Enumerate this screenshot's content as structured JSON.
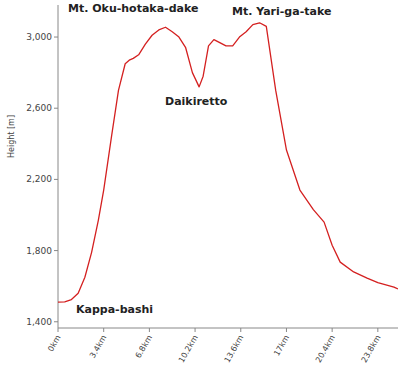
{
  "chart_data": {
    "type": "line",
    "ylabel": "Height [m]",
    "annotations": [
      "Mt. Oku-hotaka-dake",
      "Mt. Yari-ga-take",
      "Daikiretto",
      "Kappa-bashi"
    ],
    "x": [
      0,
      0.5,
      1.0,
      1.5,
      2.0,
      2.5,
      3.0,
      3.4,
      4.0,
      4.5,
      5.0,
      5.3,
      5.6,
      6.0,
      6.5,
      7.0,
      7.5,
      8.0,
      8.5,
      9.0,
      9.5,
      10.0,
      10.5,
      10.8,
      11.2,
      11.6,
      12.0,
      12.5,
      13.0,
      13.5,
      14.0,
      14.5,
      15.0,
      15.5,
      16.2,
      17.0,
      18.0,
      19.0,
      19.8,
      20.4,
      21.0,
      22.0,
      23.0,
      23.8,
      25.0,
      25.3
    ],
    "values": [
      1510,
      1512,
      1525,
      1560,
      1650,
      1790,
      1970,
      2140,
      2450,
      2700,
      2850,
      2870,
      2880,
      2900,
      2960,
      3010,
      3040,
      3055,
      3030,
      3000,
      2940,
      2800,
      2720,
      2780,
      2950,
      2985,
      2970,
      2950,
      2950,
      3000,
      3030,
      3070,
      3080,
      3060,
      2700,
      2365,
      2140,
      2030,
      1960,
      1830,
      1735,
      1680,
      1645,
      1620,
      1595,
      1585
    ],
    "color": "#d42020",
    "xlim": [
      0,
      25.3
    ],
    "ylim": [
      1365,
      3180
    ],
    "xticks": [
      {
        "value": 0,
        "label": "0km"
      },
      {
        "value": 3.4,
        "label": "3.4km"
      },
      {
        "value": 6.8,
        "label": "6.8km"
      },
      {
        "value": 10.2,
        "label": "10.2km"
      },
      {
        "value": 13.6,
        "label": "13.6km"
      },
      {
        "value": 17,
        "label": "17km"
      },
      {
        "value": 20.4,
        "label": "20.4km"
      },
      {
        "value": 23.8,
        "label": "23.8km"
      }
    ],
    "yticks": [
      {
        "value": 1400,
        "label": "1,400"
      },
      {
        "value": 1800,
        "label": "1,800"
      },
      {
        "value": 2200,
        "label": "2,200"
      },
      {
        "value": 2600,
        "label": "2,600"
      },
      {
        "value": 3000,
        "label": "3,000"
      }
    ],
    "grid": false
  }
}
